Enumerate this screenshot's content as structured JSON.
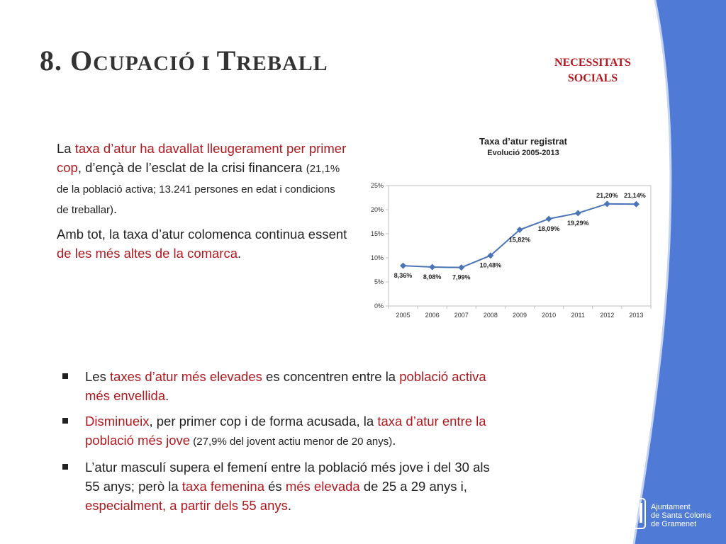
{
  "colors": {
    "accent": "#b0181e",
    "side_blue": "#4f7ad6",
    "chart_line": "#4a74b6"
  },
  "header": {
    "title_cap1": "8. O",
    "title_sc1": "cupació i ",
    "title_cap2": "T",
    "title_sc2": "reball",
    "tag_line1": "NECESSITATS",
    "tag_line2": "SOCIALS"
  },
  "intro": {
    "p1_a": "La ",
    "p1_b": "taxa d’atur ha davallat lleugerament per primer cop",
    "p1_c": ", d’ençà de l’esclat de la crisi financera ",
    "p1_d": "(21,1% de la població activa; 13.241 persones en edat i condicions de treballar)",
    "p1_e": ".",
    "p2_a": "Amb tot, la taxa d’atur colomenca continua essent ",
    "p2_b": "de les més altes de la comarca",
    "p2_c": "."
  },
  "chart_data": {
    "type": "line",
    "title": "Taxa d’atur registrat",
    "subtitle": "Evolució 2005-2013",
    "categories": [
      "2005",
      "2006",
      "2007",
      "2008",
      "2009",
      "2010",
      "2011",
      "2012",
      "2013"
    ],
    "values": [
      8.36,
      8.08,
      7.99,
      10.48,
      15.82,
      18.09,
      19.29,
      21.2,
      21.14
    ],
    "data_labels": [
      "8,36%",
      "8,08%",
      "7,99%",
      "10,48%",
      "15,82%",
      "18,09%",
      "19,29%",
      "21,20%",
      "21,14%"
    ],
    "y_ticks": [
      "0%",
      "5%",
      "10%",
      "15%",
      "20%",
      "25%"
    ],
    "ylim": [
      0,
      25
    ],
    "grid": false,
    "legend": "none"
  },
  "bullets": [
    {
      "a": "Les ",
      "b": "taxes d’atur més elevades",
      "c": " es concentren entre la ",
      "d": "població activa més envellida",
      "e": "."
    },
    {
      "a": "Disminueix",
      "b": ", per primer cop i de forma acusada, la ",
      "c": "taxa d’atur entre la població més jove",
      "d": " (27,9% del jovent actiu menor de 20 anys)",
      "e": "."
    },
    {
      "a": "L’atur masculí supera el femení entre la població més jove i del 30 als 55 anys; però la ",
      "b": "taxa femenina",
      "c": " és ",
      "d": "més elevada",
      "e": " de 25 a 29 anys i, ",
      "f": "especialment, a partir dels 55 anys",
      "g": "."
    }
  ],
  "footer": {
    "logo_line1": "Ajuntament",
    "logo_line2": "de Santa Coloma",
    "logo_line3": "de Gramenet"
  }
}
